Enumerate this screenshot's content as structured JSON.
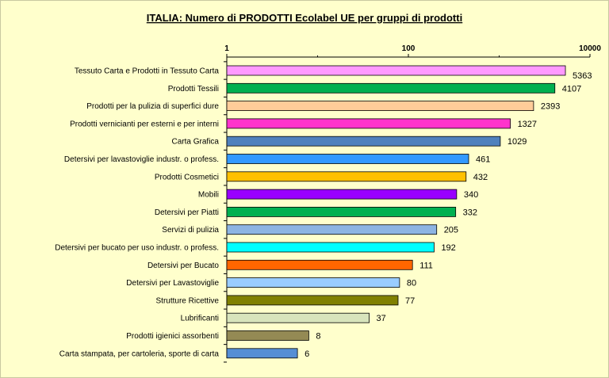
{
  "chart_data": {
    "type": "bar",
    "orientation": "horizontal",
    "title": "ITALIA: Numero di PRODOTTI  Ecolabel UE per gruppi di prodotti",
    "xscale": "log",
    "xlim": [
      1,
      10000
    ],
    "xticks": [
      "1",
      "100",
      "10000"
    ],
    "xtick_values": [
      1,
      100,
      10000
    ],
    "grid": false,
    "categories": [
      "Tessuto Carta e Prodotti in Tessuto Carta",
      "Prodotti Tessili",
      "Prodotti per la pulizia di superfici dure",
      "Prodotti vernicianti per esterni e per interni",
      "Carta Grafica",
      "Detersivi per lavastoviglie industr. o profess.",
      "Prodotti Cosmetici",
      "Mobili",
      "Detersivi per Piatti",
      "Servizi di pulizia",
      "Detersivi per bucato per uso industr. o profess.",
      "Detersivi per Bucato",
      "Detersivi per Lavastoviglie",
      "Strutture Ricettive",
      "Lubrificanti",
      "Prodotti igienici assorbenti",
      "Carta stampata, per cartoleria, sporte di carta"
    ],
    "values": [
      5363,
      4107,
      2393,
      1327,
      1029,
      461,
      432,
      340,
      332,
      205,
      192,
      111,
      80,
      77,
      37,
      8,
      6
    ],
    "value_labels": [
      "5363",
      "4107",
      "2393",
      "1327",
      "1029",
      "461",
      "432",
      "340",
      "332",
      "205",
      "192",
      "111",
      "80",
      "77",
      "37",
      "8",
      "6"
    ],
    "colors": [
      "#ff99ff",
      "#00b050",
      "#ffcc99",
      "#ff33cc",
      "#4f81bd",
      "#3399ff",
      "#ffc000",
      "#9900ff",
      "#00b050",
      "#8db4e2",
      "#00ffff",
      "#ff6600",
      "#99ccff",
      "#808000",
      "#d8e4bc",
      "#948a54",
      "#558ed5"
    ],
    "background": "#ffffcc"
  }
}
